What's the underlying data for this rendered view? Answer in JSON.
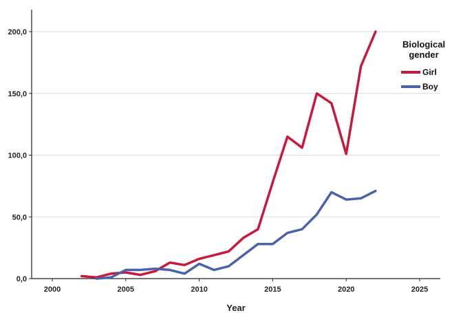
{
  "chart_data": {
    "type": "line",
    "title": "",
    "xlabel": "Year",
    "ylabel": "",
    "xlim": [
      1997,
      2030
    ],
    "ylim": [
      0,
      220
    ],
    "xticks": [
      2000,
      2005,
      2010,
      2015,
      2020,
      2025
    ],
    "xtick_labels": [
      "2000",
      "2005",
      "2010",
      "2015",
      "2020",
      "2025"
    ],
    "yticks": [
      0,
      50,
      100,
      150,
      200
    ],
    "ytick_labels": [
      "0,0",
      "50,0",
      "100,0",
      "150,0",
      "200,0"
    ],
    "grid": "horizontal",
    "legend": {
      "title": "Biological gender",
      "title_lines": [
        "Biological",
        "gender"
      ],
      "placement": "top-right"
    },
    "series": [
      {
        "name": "Girl",
        "color": "#c8193c",
        "x": [
          2002,
          2003,
          2004,
          2005,
          2006,
          2007,
          2008,
          2009,
          2010,
          2011,
          2012,
          2013,
          2014,
          2015,
          2016,
          2017,
          2018,
          2019,
          2020,
          2021,
          2022
        ],
        "y": [
          2,
          1,
          4,
          5,
          3,
          6,
          13,
          11,
          16,
          19,
          22,
          33,
          40,
          78,
          115,
          106,
          150,
          142,
          101,
          172,
          200
        ]
      },
      {
        "name": "Boy",
        "color": "#4a62a8",
        "x": [
          2003,
          2004,
          2005,
          2006,
          2007,
          2008,
          2009,
          2010,
          2011,
          2012,
          2013,
          2014,
          2015,
          2016,
          2017,
          2018,
          2019,
          2020,
          2021,
          2022
        ],
        "y": [
          0,
          1,
          7,
          7,
          8,
          7,
          4,
          12,
          7,
          10,
          19,
          28,
          28,
          37,
          40,
          52,
          70,
          64,
          65,
          71
        ]
      }
    ]
  }
}
